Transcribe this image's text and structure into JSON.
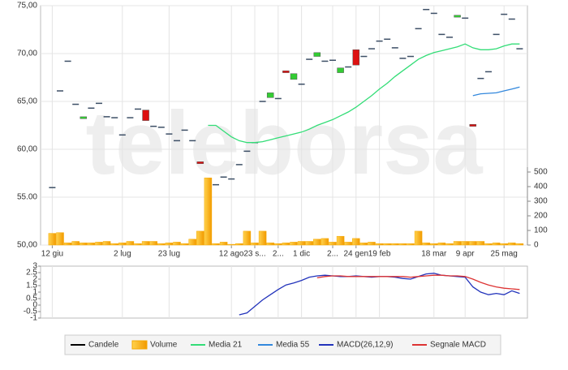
{
  "watermark": "teleborsa",
  "chart_data": [
    {
      "type": "candlestick",
      "categories": [
        "12 giu",
        null,
        null,
        null,
        null,
        null,
        null,
        null,
        null,
        "2 lug",
        null,
        null,
        null,
        null,
        null,
        "23 lug",
        null,
        null,
        null,
        null,
        null,
        null,
        null,
        "12 ago",
        null,
        null,
        "23 s...",
        null,
        null,
        "2...",
        null,
        null,
        "1 dic",
        null,
        null,
        null,
        "2...",
        null,
        null,
        "24 gen",
        null,
        null,
        "19 feb",
        null,
        null,
        null,
        null,
        null,
        null,
        "18 mar",
        null,
        null,
        null,
        "9 apr",
        null,
        null,
        null,
        null,
        "25 mag",
        null,
        null
      ],
      "ylim": [
        50,
        75
      ],
      "yticks": [
        {
          "value": 75,
          "label": "75,00"
        },
        {
          "value": 70,
          "label": "70,00"
        },
        {
          "value": 65,
          "label": "65,00"
        },
        {
          "value": 60,
          "label": "60,00"
        },
        {
          "value": 55,
          "label": "55.00"
        },
        {
          "value": 50,
          "label": "50,00"
        }
      ],
      "y2lim": [
        0,
        500
      ],
      "y2ticks": [
        0,
        100,
        200,
        300,
        400,
        500
      ],
      "grid": true,
      "series": [
        {
          "name": "Candele",
          "color": "#000000",
          "up_color": "#33cc33",
          "down_color": "#dd1111",
          "flat_color": "#3d4f66",
          "open": [
            56.0,
            66.1,
            69.2,
            64.7,
            63.2,
            64.3,
            64.8,
            63.4,
            63.3,
            61.5,
            63.3,
            64.2,
            64.1,
            62.4,
            62.3,
            61.6,
            60.9,
            62.0,
            60.9,
            58.7,
            55.5,
            56.3,
            57.1,
            56.9,
            58.4,
            59.8,
            60.7,
            65.0,
            65.4,
            65.3,
            68.2,
            67.3,
            66.8,
            69.4,
            69.7,
            69.2,
            69.3,
            68.0,
            68.6,
            70.4,
            69.7,
            70.5,
            71.3,
            71.5,
            70.6,
            69.5,
            69.7,
            72.6,
            74.6,
            74.2,
            72.0,
            71.7,
            73.8,
            73.7,
            62.6,
            67.4,
            68.1,
            72.0,
            74.1,
            73.6,
            70.5
          ],
          "close": [
            56.0,
            66.1,
            69.2,
            64.7,
            63.4,
            64.3,
            64.8,
            63.4,
            63.3,
            61.5,
            63.3,
            64.2,
            63.0,
            62.4,
            62.3,
            61.6,
            60.9,
            62.0,
            60.9,
            58.5,
            55.5,
            56.3,
            57.1,
            56.9,
            58.4,
            59.8,
            60.7,
            65.0,
            65.9,
            65.3,
            68.0,
            67.9,
            66.8,
            69.4,
            70.1,
            69.2,
            69.3,
            68.5,
            68.6,
            68.8,
            69.7,
            70.5,
            71.3,
            71.5,
            70.6,
            69.5,
            69.7,
            72.6,
            74.6,
            74.2,
            72.0,
            71.7,
            74.0,
            73.7,
            62.4,
            67.4,
            68.1,
            72.0,
            74.1,
            73.6,
            70.5
          ]
        },
        {
          "name": "Volume",
          "color": "#f5a800",
          "axis": "y2",
          "values": [
            80,
            85,
            15,
            25,
            15,
            15,
            20,
            25,
            10,
            15,
            25,
            10,
            25,
            25,
            10,
            15,
            20,
            10,
            40,
            95,
            460,
            10,
            20,
            5,
            10,
            95,
            15,
            95,
            15,
            10,
            15,
            20,
            25,
            25,
            40,
            45,
            20,
            60,
            20,
            45,
            15,
            20,
            10,
            10,
            10,
            10,
            10,
            95,
            15,
            10,
            15,
            10,
            25,
            25,
            25,
            25,
            10,
            15,
            10,
            15,
            10
          ]
        },
        {
          "name": "Media 21",
          "color": "#33dd77",
          "values": [
            null,
            null,
            null,
            null,
            null,
            null,
            null,
            null,
            null,
            null,
            null,
            null,
            null,
            null,
            null,
            null,
            null,
            null,
            null,
            null,
            62.5,
            62.5,
            61.9,
            61.3,
            60.9,
            60.7,
            60.7,
            60.8,
            61.0,
            61.2,
            61.4,
            61.6,
            61.8,
            62.1,
            62.5,
            62.8,
            63.1,
            63.5,
            63.9,
            64.4,
            65.0,
            65.6,
            66.3,
            66.9,
            67.6,
            68.2,
            68.8,
            69.4,
            69.8,
            70.1,
            70.3,
            70.5,
            70.7,
            71.0,
            70.6,
            70.4,
            70.4,
            70.5,
            70.8,
            71.0,
            71.0
          ]
        },
        {
          "name": "Media 55",
          "color": "#3388dd",
          "values": [
            null,
            null,
            null,
            null,
            null,
            null,
            null,
            null,
            null,
            null,
            null,
            null,
            null,
            null,
            null,
            null,
            null,
            null,
            null,
            null,
            null,
            null,
            null,
            null,
            null,
            null,
            null,
            null,
            null,
            null,
            null,
            null,
            null,
            null,
            null,
            null,
            null,
            null,
            null,
            null,
            null,
            null,
            null,
            null,
            null,
            null,
            null,
            null,
            null,
            null,
            null,
            null,
            null,
            null,
            65.6,
            65.8,
            65.85,
            65.9,
            66.1,
            66.3,
            66.5
          ]
        }
      ]
    },
    {
      "type": "line",
      "ylim": [
        -1,
        3
      ],
      "yticks": [
        3,
        2.5,
        2,
        1.5,
        1,
        0.5,
        0,
        -0.5,
        -1
      ],
      "series": [
        {
          "name": "MACD(26,12,9)",
          "color": "#2233bb",
          "values": [
            null,
            null,
            null,
            null,
            null,
            null,
            null,
            null,
            null,
            null,
            null,
            null,
            null,
            null,
            null,
            null,
            null,
            null,
            null,
            null,
            null,
            null,
            null,
            null,
            -0.75,
            -0.6,
            -0.1,
            0.4,
            0.8,
            1.2,
            1.55,
            1.7,
            1.9,
            2.15,
            2.25,
            2.3,
            2.25,
            2.2,
            2.2,
            2.25,
            2.2,
            2.15,
            2.2,
            2.2,
            2.15,
            2.05,
            2.0,
            2.2,
            2.4,
            2.45,
            2.3,
            2.25,
            2.2,
            2.15,
            1.4,
            1.0,
            0.8,
            0.9,
            0.8,
            1.1,
            0.9
          ]
        },
        {
          "name": "Segnale MACD",
          "color": "#dd3333",
          "values": [
            null,
            null,
            null,
            null,
            null,
            null,
            null,
            null,
            null,
            null,
            null,
            null,
            null,
            null,
            null,
            null,
            null,
            null,
            null,
            null,
            null,
            null,
            null,
            null,
            null,
            null,
            null,
            null,
            null,
            null,
            null,
            null,
            null,
            null,
            2.1,
            2.2,
            2.25,
            2.25,
            2.2,
            2.2,
            2.2,
            2.2,
            2.2,
            2.2,
            2.2,
            2.2,
            2.15,
            2.2,
            2.25,
            2.3,
            2.3,
            2.25,
            2.25,
            2.2,
            2.0,
            1.75,
            1.55,
            1.4,
            1.3,
            1.25,
            1.2
          ]
        }
      ]
    }
  ]
}
